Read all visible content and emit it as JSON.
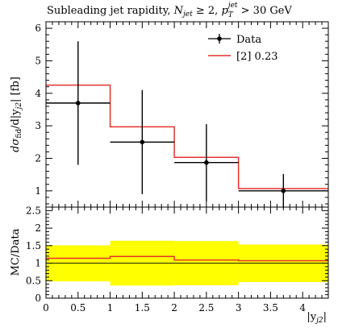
{
  "chart_data": [
    {
      "type": "line",
      "panel": "main",
      "title": "Subleading jet rapidity, N_jet ≥ 2, p_T^jet > 30 GeV",
      "title_parts": {
        "prefix": "Subleading jet rapidity, ",
        "njet": "N",
        "njet_sub": "jet",
        "njet_cond": " ≥ 2, ",
        "pt": "p",
        "pt_sub": "T",
        "pt_sup": "jet",
        "pt_cond": " > 30 GeV"
      },
      "ylabel": "dσfid/d|y_j2| [fb]",
      "ylabel_parts": {
        "d1": "dσ",
        "fid": "fid",
        "mid": "/d|y",
        "j2": "j2",
        "end": "| [fb]"
      },
      "xlabel": "|y_j2|",
      "xlabel_parts": {
        "open": "|y",
        "sub": "j2",
        "close": "|"
      },
      "xlim": [
        0,
        4.4
      ],
      "ylim": [
        0.5,
        6.2
      ],
      "y_ticks": [
        "1",
        "2",
        "3",
        "4",
        "5",
        "6"
      ],
      "legend_position": "top-right",
      "series": [
        {
          "name": "Data",
          "color": "#000000",
          "points": [
            {
              "x": 0.5,
              "xlo": 0.0,
              "xhi": 1.0,
              "y": 3.7,
              "ylo": 1.8,
              "yhi": 5.6
            },
            {
              "x": 1.5,
              "xlo": 1.0,
              "xhi": 2.0,
              "y": 2.5,
              "ylo": 0.9,
              "yhi": 4.1
            },
            {
              "x": 2.5,
              "xlo": 2.0,
              "xhi": 3.0,
              "y": 1.87,
              "ylo": 0.68,
              "yhi": 3.05
            },
            {
              "x": 3.7,
              "xlo": 3.0,
              "xhi": 4.4,
              "y": 1.0,
              "ylo": 0.48,
              "yhi": 1.52
            }
          ]
        },
        {
          "name": "[2] 0.23",
          "color": "#e4342c",
          "edges": [
            0,
            1,
            2,
            3,
            4.4
          ],
          "values": [
            4.25,
            2.97,
            2.03,
            1.07
          ]
        }
      ]
    },
    {
      "type": "area",
      "panel": "ratio",
      "ylabel": "MC/Data",
      "xlabel": "|y_j2|",
      "xlim": [
        0,
        4.4
      ],
      "ylim": [
        0,
        2.6
      ],
      "y_ticks": [
        "0",
        "0.5",
        "1",
        "1.5",
        "2",
        "2.5"
      ],
      "x_ticks": [
        "0",
        "0.5",
        "1",
        "1.5",
        "2",
        "2.5",
        "3",
        "3.5",
        "4"
      ],
      "band": {
        "color": "#ffff00",
        "edges": [
          0,
          1,
          2,
          3,
          4.4
        ],
        "lo": [
          0.48,
          0.36,
          0.37,
          0.46
        ],
        "hi": [
          1.51,
          1.64,
          1.63,
          1.53
        ]
      },
      "ratio_line": {
        "color": "#e4342c",
        "edges": [
          0,
          1,
          2,
          3,
          4.4
        ],
        "values": [
          1.14,
          1.19,
          1.09,
          1.07
        ]
      }
    }
  ]
}
